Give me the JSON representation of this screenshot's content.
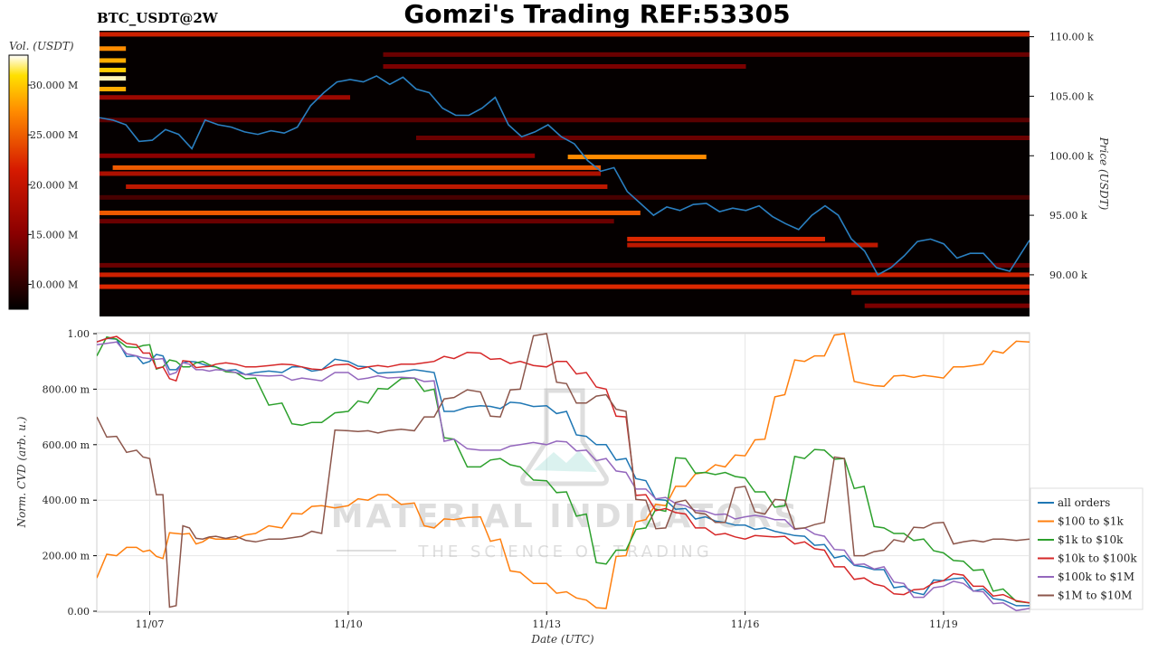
{
  "header": {
    "title": "Gomzi's Trading REF:53305",
    "symbol": "BTC_USDT@2W"
  },
  "watermark": {
    "line1": "MATERIAL INDICATORS",
    "line2": "THE SCIENCE OF TRADING"
  },
  "colorbar": {
    "label": "Vol. (USDT)",
    "ticks": [
      "30.000 M",
      "25.000 M",
      "20.000 M",
      "15.000 M",
      "10.000 M"
    ],
    "tick_values": [
      30,
      25,
      20,
      15,
      10
    ],
    "range": [
      7.5,
      33
    ]
  },
  "colors": {
    "price_line": "#2a7fc0",
    "heatmap_bg": "#050000",
    "all_orders": "#1f77b4",
    "usd100_1k": "#ff7f0e",
    "usd1k_10k": "#2ca02c",
    "usd10k_100k": "#d62728",
    "usd100k_1m": "#9467bd",
    "usd1m_10m": "#8c564b"
  },
  "chart_data": [
    {
      "type": "heatmap",
      "title": "BTC_USDT@2W",
      "ylabel": "Price (USDT)",
      "ylim": [
        86.5,
        110.5
      ],
      "y_ticks": [
        110,
        105,
        100,
        95,
        90
      ],
      "y_tick_labels": [
        "110.00 k",
        "105.00 k",
        "100.00 k",
        "95.00 k",
        "90.00 k"
      ],
      "x_range_days": [
        6.2,
        20.3
      ],
      "liquidity_bands": [
        {
          "price": 110.2,
          "x0": 6.2,
          "x1": 20.3,
          "intensity": 0.55
        },
        {
          "price": 109.0,
          "x0": 6.2,
          "x1": 6.6,
          "intensity": 0.8
        },
        {
          "price": 108.0,
          "x0": 6.2,
          "x1": 6.6,
          "intensity": 0.85
        },
        {
          "price": 107.2,
          "x0": 6.2,
          "x1": 6.6,
          "intensity": 0.9
        },
        {
          "price": 106.5,
          "x0": 6.2,
          "x1": 6.6,
          "intensity": 0.98
        },
        {
          "price": 105.6,
          "x0": 6.2,
          "x1": 6.6,
          "intensity": 0.85
        },
        {
          "price": 104.9,
          "x0": 6.2,
          "x1": 10.0,
          "intensity": 0.4
        },
        {
          "price": 100.0,
          "x0": 6.2,
          "x1": 12.8,
          "intensity": 0.35
        },
        {
          "price": 99.9,
          "x0": 13.3,
          "x1": 15.4,
          "intensity": 0.8
        },
        {
          "price": 99.0,
          "x0": 6.4,
          "x1": 13.8,
          "intensity": 0.7
        },
        {
          "price": 98.5,
          "x0": 6.2,
          "x1": 13.8,
          "intensity": 0.45
        },
        {
          "price": 97.4,
          "x0": 6.6,
          "x1": 13.9,
          "intensity": 0.5
        },
        {
          "price": 95.2,
          "x0": 6.2,
          "x1": 14.4,
          "intensity": 0.7
        },
        {
          "price": 94.5,
          "x0": 6.2,
          "x1": 14.0,
          "intensity": 0.25
        },
        {
          "price": 93.0,
          "x0": 14.2,
          "x1": 17.2,
          "intensity": 0.6
        },
        {
          "price": 92.5,
          "x0": 14.2,
          "x1": 18.0,
          "intensity": 0.5
        },
        {
          "price": 90.8,
          "x0": 6.2,
          "x1": 20.3,
          "intensity": 0.25
        },
        {
          "price": 90.0,
          "x0": 6.2,
          "x1": 20.3,
          "intensity": 0.55
        },
        {
          "price": 89.0,
          "x0": 6.2,
          "x1": 20.3,
          "intensity": 0.6
        },
        {
          "price": 88.5,
          "x0": 17.6,
          "x1": 20.3,
          "intensity": 0.45
        },
        {
          "price": 87.4,
          "x0": 17.8,
          "x1": 20.3,
          "intensity": 0.3
        },
        {
          "price": 103.0,
          "x0": 6.2,
          "x1": 20.3,
          "intensity": 0.2
        },
        {
          "price": 101.5,
          "x0": 11.0,
          "x1": 20.3,
          "intensity": 0.25
        },
        {
          "price": 96.5,
          "x0": 6.2,
          "x1": 20.3,
          "intensity": 0.15
        },
        {
          "price": 108.5,
          "x0": 10.5,
          "x1": 20.3,
          "intensity": 0.25
        },
        {
          "price": 107.5,
          "x0": 10.5,
          "x1": 16.0,
          "intensity": 0.3
        }
      ],
      "price_series": {
        "name": "",
        "x": [
          6.2,
          6.4,
          6.6,
          6.8,
          7.0,
          7.2,
          7.4,
          7.6,
          7.8,
          8.0,
          8.2,
          8.4,
          8.6,
          8.8,
          9.0,
          9.2,
          9.4,
          9.6,
          9.8,
          10.0,
          10.2,
          10.4,
          10.6,
          10.8,
          11.0,
          11.2,
          11.4,
          11.6,
          11.8,
          12.0,
          12.2,
          12.4,
          12.6,
          12.8,
          13.0,
          13.2,
          13.4,
          13.6,
          13.8,
          14.0,
          14.2,
          14.4,
          14.6,
          14.8,
          15.0,
          15.2,
          15.4,
          15.6,
          15.8,
          16.0,
          16.2,
          16.4,
          16.6,
          16.8,
          17.0,
          17.2,
          17.4,
          17.6,
          17.8,
          18.0,
          18.2,
          18.4,
          18.6,
          18.8,
          19.0,
          19.2,
          19.4,
          19.6,
          19.8,
          20.0,
          20.3
        ],
        "y": [
          103.2,
          103.0,
          102.6,
          101.2,
          101.3,
          102.2,
          101.8,
          100.6,
          103.0,
          102.6,
          102.4,
          102.0,
          101.8,
          102.1,
          101.9,
          102.4,
          104.2,
          105.3,
          106.2,
          106.4,
          106.2,
          106.7,
          106.0,
          106.6,
          105.6,
          105.3,
          104.0,
          103.4,
          103.4,
          104.0,
          104.9,
          102.6,
          101.6,
          102.0,
          102.6,
          101.6,
          101.0,
          99.6,
          98.7,
          99.0,
          97.0,
          96.0,
          95.0,
          95.7,
          95.4,
          95.9,
          96.0,
          95.3,
          95.6,
          95.4,
          95.8,
          94.9,
          94.3,
          93.8,
          95.0,
          95.8,
          95.0,
          93.0,
          92.0,
          90.0,
          90.6,
          91.6,
          92.8,
          93.0,
          92.6,
          91.4,
          91.8,
          91.8,
          90.6,
          90.3,
          92.9
        ]
      }
    },
    {
      "type": "line",
      "xlabel": "Date (UTC)",
      "ylabel": "Norm. CVD (arb. u.)",
      "ylim": [
        0,
        1
      ],
      "xlim": [
        6.2,
        20.3
      ],
      "y_ticks": [
        0,
        0.2,
        0.4,
        0.6,
        0.8,
        1.0
      ],
      "y_tick_labels": [
        "0.00",
        "200.00 m",
        "400.00 m",
        "600.00 m",
        "800.00 m",
        "1.00"
      ],
      "x_ticks": [
        7,
        10,
        13,
        16,
        19
      ],
      "x_tick_labels": [
        "11/07",
        "11/10",
        "11/13",
        "11/16",
        "11/19"
      ],
      "grid": true,
      "legend_position": "right",
      "x": [
        6.2,
        6.5,
        6.8,
        7.0,
        7.2,
        7.4,
        7.6,
        7.8,
        8.0,
        8.3,
        8.6,
        9.0,
        9.3,
        9.6,
        10.0,
        10.3,
        10.6,
        11.0,
        11.3,
        11.6,
        12.0,
        12.3,
        12.6,
        13.0,
        13.3,
        13.6,
        13.9,
        14.2,
        14.5,
        14.8,
        15.1,
        15.4,
        15.7,
        16.0,
        16.3,
        16.6,
        16.9,
        17.2,
        17.5,
        17.8,
        18.1,
        18.4,
        18.7,
        19.0,
        19.3,
        19.6,
        19.9,
        20.3
      ],
      "series": [
        {
          "name": "all orders",
          "color": "#1f77b4",
          "values": [
            0.97,
            0.98,
            0.92,
            0.9,
            0.92,
            0.87,
            0.9,
            0.89,
            0.88,
            0.87,
            0.86,
            0.86,
            0.88,
            0.87,
            0.9,
            0.88,
            0.86,
            0.87,
            0.86,
            0.72,
            0.74,
            0.73,
            0.75,
            0.74,
            0.72,
            0.63,
            0.6,
            0.55,
            0.47,
            0.4,
            0.37,
            0.34,
            0.32,
            0.31,
            0.3,
            0.28,
            0.27,
            0.24,
            0.2,
            0.16,
            0.15,
            0.09,
            0.06,
            0.11,
            0.12,
            0.08,
            0.04,
            0.02
          ]
        },
        {
          "name": "$100 to $1k",
          "color": "#ff7f0e",
          "values": [
            0.12,
            0.2,
            0.23,
            0.22,
            0.19,
            0.28,
            0.28,
            0.25,
            0.26,
            0.26,
            0.28,
            0.3,
            0.35,
            0.38,
            0.38,
            0.4,
            0.42,
            0.39,
            0.3,
            0.33,
            0.34,
            0.26,
            0.14,
            0.1,
            0.07,
            0.04,
            0.01,
            0.2,
            0.33,
            0.38,
            0.45,
            0.5,
            0.52,
            0.56,
            0.62,
            0.78,
            0.9,
            0.92,
            1.0,
            0.82,
            0.81,
            0.85,
            0.85,
            0.84,
            0.88,
            0.89,
            0.93,
            0.97
          ]
        },
        {
          "name": "$1k to $10k",
          "color": "#2ca02c",
          "values": [
            0.92,
            0.98,
            0.95,
            0.96,
            0.88,
            0.9,
            0.88,
            0.9,
            0.88,
            0.86,
            0.84,
            0.75,
            0.67,
            0.68,
            0.72,
            0.75,
            0.8,
            0.84,
            0.8,
            0.62,
            0.52,
            0.55,
            0.52,
            0.47,
            0.43,
            0.35,
            0.17,
            0.22,
            0.3,
            0.36,
            0.55,
            0.5,
            0.5,
            0.48,
            0.43,
            0.38,
            0.55,
            0.58,
            0.55,
            0.45,
            0.3,
            0.28,
            0.26,
            0.21,
            0.18,
            0.15,
            0.08,
            0.03
          ]
        },
        {
          "name": "$10k to $100k",
          "color": "#d62728",
          "values": [
            0.97,
            0.99,
            0.96,
            0.93,
            0.88,
            0.83,
            0.9,
            0.88,
            0.89,
            0.89,
            0.88,
            0.89,
            0.88,
            0.87,
            0.89,
            0.88,
            0.88,
            0.89,
            0.9,
            0.91,
            0.93,
            0.91,
            0.9,
            0.88,
            0.9,
            0.86,
            0.8,
            0.7,
            0.42,
            0.37,
            0.35,
            0.3,
            0.28,
            0.26,
            0.27,
            0.27,
            0.25,
            0.22,
            0.16,
            0.12,
            0.09,
            0.06,
            0.08,
            0.11,
            0.13,
            0.09,
            0.06,
            0.03
          ]
        },
        {
          "name": "$100k to $1M",
          "color": "#9467bd",
          "values": [
            0.96,
            0.97,
            0.92,
            0.91,
            0.91,
            0.86,
            0.89,
            0.87,
            0.87,
            0.86,
            0.85,
            0.85,
            0.84,
            0.83,
            0.86,
            0.84,
            0.84,
            0.84,
            0.83,
            0.62,
            0.58,
            0.58,
            0.6,
            0.6,
            0.61,
            0.58,
            0.55,
            0.5,
            0.44,
            0.41,
            0.38,
            0.36,
            0.35,
            0.34,
            0.34,
            0.33,
            0.3,
            0.27,
            0.22,
            0.17,
            0.16,
            0.1,
            0.05,
            0.09,
            0.1,
            0.07,
            0.03,
            0.01
          ]
        },
        {
          "name": "$1M to $10M",
          "color": "#8c564b",
          "values": [
            0.7,
            0.63,
            0.58,
            0.55,
            0.42,
            0.02,
            0.3,
            0.26,
            0.27,
            0.27,
            0.25,
            0.26,
            0.27,
            0.28,
            0.65,
            0.65,
            0.65,
            0.65,
            0.7,
            0.77,
            0.79,
            0.7,
            0.8,
            1.0,
            0.82,
            0.75,
            0.78,
            0.72,
            0.4,
            0.3,
            0.4,
            0.35,
            0.32,
            0.45,
            0.35,
            0.4,
            0.3,
            0.32,
            0.55,
            0.2,
            0.22,
            0.25,
            0.3,
            0.32,
            0.25,
            0.25,
            0.26,
            0.26
          ]
        }
      ]
    }
  ]
}
